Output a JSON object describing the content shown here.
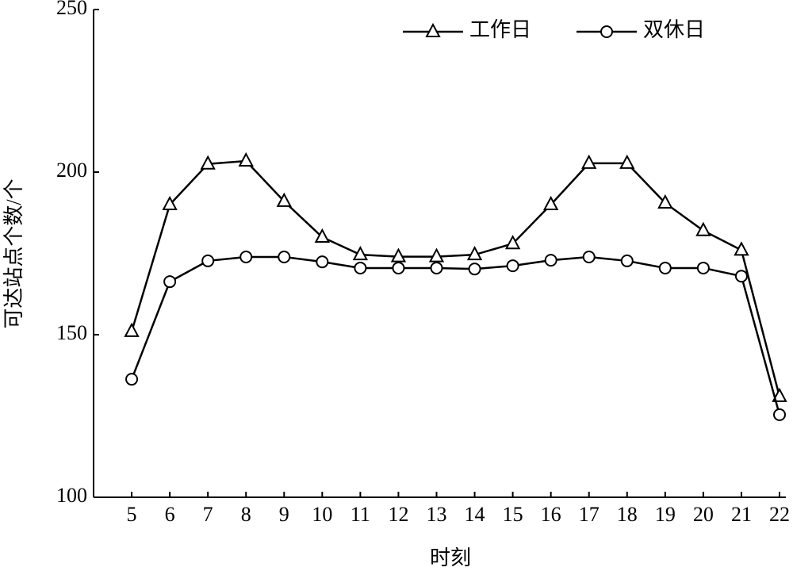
{
  "chart_data": {
    "type": "line",
    "x_label": "时刻",
    "y_label": "可达站点个数/个",
    "x": [
      5,
      6,
      7,
      8,
      9,
      10,
      11,
      12,
      13,
      14,
      15,
      16,
      17,
      18,
      19,
      20,
      21,
      22
    ],
    "series": [
      {
        "name": "工作日",
        "color": "#000000",
        "marker": "triangle",
        "values": [
          151,
          190,
          202.5,
          203.4,
          191,
          180,
          174.6,
          174,
          174,
          174.6,
          178,
          190,
          202.7,
          202.7,
          190.5,
          182,
          176,
          131
        ]
      },
      {
        "name": "双休日",
        "color": "#000000",
        "marker": "circle",
        "values": [
          136.3,
          166.3,
          172.7,
          173.9,
          173.9,
          172.4,
          170.5,
          170.5,
          170.5,
          170.2,
          171.2,
          172.9,
          173.9,
          172.7,
          170.5,
          170.5,
          168,
          125.4
        ]
      }
    ],
    "xlim": [
      4,
      22
    ],
    "xticks": [
      5,
      6,
      7,
      8,
      9,
      10,
      11,
      12,
      13,
      14,
      15,
      16,
      17,
      18,
      19,
      20,
      21,
      22
    ],
    "ylim": [
      100,
      250
    ],
    "yticks": [
      100,
      150,
      200,
      250
    ],
    "legend": "upper right"
  }
}
